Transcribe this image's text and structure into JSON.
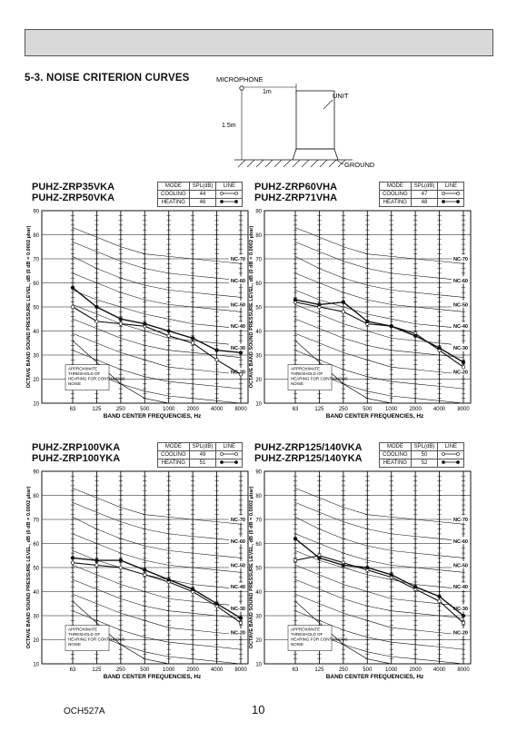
{
  "section_title": "5-3. NOISE CRITERION CURVES",
  "diagram": {
    "microphone_label": "MICROPHONE",
    "distance_label": "1m",
    "height_label": "1.5m",
    "unit_label": "UNIT",
    "ground_label": "GROUND"
  },
  "legend_headers": {
    "mode": "MODE",
    "spl": "SPL(dB)",
    "line": "LINE"
  },
  "footer": {
    "doc_code": "OCH527A",
    "page": "10"
  },
  "chart_data": [
    {
      "type": "line",
      "models": [
        "PUHZ-ZRP35VKA",
        "PUHZ-ZRP50VKA"
      ],
      "legend": [
        {
          "mode": "COOLING",
          "spl": "44"
        },
        {
          "mode": "HEATING",
          "spl": "46"
        }
      ],
      "x": [
        "63",
        "125",
        "250",
        "500",
        "1000",
        "2000",
        "4000",
        "8000"
      ],
      "xlabel": "BAND CENTER FREQUENCIES, Hz",
      "ylabel": "OCTAVE BAND SOUND PRESSURE LEVEL, dB (0 dB = 0.0002 µbar)",
      "ylim": [
        10,
        90
      ],
      "yticks": [
        10,
        20,
        30,
        40,
        50,
        60,
        70,
        80,
        90
      ],
      "nc_labels": [
        "NC-70",
        "NC-60",
        "NC-50",
        "NC-40",
        "NC-30",
        "NC-20"
      ],
      "annotation": "APPROXIMATE THRESHOLD OF HEARING FOR CONTINUOUS NOISE",
      "series": [
        {
          "name": "COOLING",
          "marker": "open",
          "values": [
            50,
            44,
            43,
            42,
            38,
            35,
            28,
            22
          ]
        },
        {
          "name": "HEATING",
          "marker": "filled",
          "values": [
            58,
            50,
            45,
            43,
            40,
            37,
            32,
            31
          ]
        }
      ]
    },
    {
      "type": "line",
      "models": [
        "PUHZ-ZRP60VHA",
        "PUHZ-ZRP71VHA"
      ],
      "legend": [
        {
          "mode": "COOLING",
          "spl": "47"
        },
        {
          "mode": "HEATING",
          "spl": "48"
        }
      ],
      "x": [
        "63",
        "125",
        "250",
        "500",
        "1000",
        "2000",
        "4000",
        "8000"
      ],
      "xlabel": "BAND CENTER FREQUENCIES, Hz",
      "ylabel": "OCTAVE BAND SOUND PRESSURE LEVEL, dB (0 dB = 0.0002 µbar)",
      "ylim": [
        10,
        90
      ],
      "yticks": [
        10,
        20,
        30,
        40,
        50,
        60,
        70,
        80,
        90
      ],
      "nc_labels": [
        "NC-70",
        "NC-60",
        "NC-50",
        "NC-40",
        "NC-30",
        "NC-20"
      ],
      "annotation": "APPROXIMATE THRESHOLD OF HEARING FOR CONTINUOUS NOISE",
      "series": [
        {
          "name": "COOLING",
          "marker": "open",
          "values": [
            52,
            50,
            48,
            43,
            42,
            39,
            32,
            25
          ]
        },
        {
          "name": "HEATING",
          "marker": "filled",
          "values": [
            53,
            51,
            52,
            44,
            42,
            38,
            33,
            27
          ]
        }
      ]
    },
    {
      "type": "line",
      "models": [
        "PUHZ-ZRP100VKA",
        "PUHZ-ZRP100YKA"
      ],
      "legend": [
        {
          "mode": "COOLING",
          "spl": "49"
        },
        {
          "mode": "HEATING",
          "spl": "51"
        }
      ],
      "x": [
        "63",
        "125",
        "250",
        "500",
        "1000",
        "2000",
        "4000",
        "8000"
      ],
      "xlabel": "BAND CENTER FREQUENCIES, Hz",
      "ylabel": "OCTAVE BAND SOUND PRESSURE LEVEL, dB (0 dB = 0.0002 µbar)",
      "ylim": [
        10,
        90
      ],
      "yticks": [
        10,
        20,
        30,
        40,
        50,
        60,
        70,
        80,
        90
      ],
      "nc_labels": [
        "NC-70",
        "NC-60",
        "NC-50",
        "NC-40",
        "NC-30",
        "NC-20"
      ],
      "annotation": "APPROXIMATE THRESHOLD OF HEARING FOR CONTINUOUS NOISE",
      "series": [
        {
          "name": "COOLING",
          "marker": "open",
          "values": [
            52,
            51,
            50,
            47,
            44,
            40,
            34,
            27
          ]
        },
        {
          "name": "HEATING",
          "marker": "filled",
          "values": [
            54,
            53,
            53,
            49,
            45,
            41,
            35,
            29
          ]
        }
      ]
    },
    {
      "type": "line",
      "models": [
        "PUHZ-ZRP125/140VKA",
        "PUHZ-ZRP125/140YKA"
      ],
      "legend": [
        {
          "mode": "COOLING",
          "spl": "50"
        },
        {
          "mode": "HEATING",
          "spl": "52"
        }
      ],
      "x": [
        "63",
        "125",
        "250",
        "500",
        "1000",
        "2000",
        "4000",
        "8000"
      ],
      "xlabel": "BAND CENTER FREQUENCIES, Hz",
      "ylabel": "OCTAVE BAND SOUND PRESSURE LEVEL, dB (0 dB = 0.0002 µbar)",
      "ylim": [
        10,
        90
      ],
      "yticks": [
        10,
        20,
        30,
        40,
        50,
        60,
        70,
        80,
        90
      ],
      "nc_labels": [
        "NC-70",
        "NC-60",
        "NC-50",
        "NC-40",
        "NC-30",
        "NC-20"
      ],
      "annotation": "APPROXIMATE THRESHOLD OF HEARING FOR CONTINUOUS NOISE",
      "series": [
        {
          "name": "COOLING",
          "marker": "open",
          "values": [
            53,
            55,
            52,
            49,
            46,
            41,
            36,
            27
          ]
        },
        {
          "name": "HEATING",
          "marker": "filled",
          "values": [
            62,
            54,
            51,
            50,
            47,
            42,
            38,
            30
          ]
        }
      ]
    }
  ]
}
